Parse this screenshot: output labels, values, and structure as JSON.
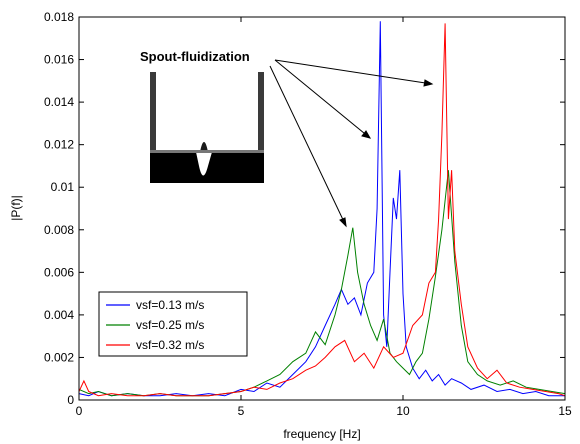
{
  "chart_data": {
    "type": "line",
    "xlabel": "frequency [Hz]",
    "ylabel": "|P(f)|",
    "xlim": [
      0,
      15
    ],
    "ylim": [
      0,
      0.018
    ],
    "xticks": [
      "0",
      "5",
      "10",
      "15"
    ],
    "yticks": [
      "0",
      "0.002",
      "0.004",
      "0.006",
      "0.008",
      "0.01",
      "0.012",
      "0.014",
      "0.016",
      "0.018"
    ],
    "legend_position": "lower-left",
    "annotation": "Spout-fluidization",
    "inset_image": "spout-fluidization bed photo (grayscale)",
    "series": [
      {
        "name": "vsf=0.13 m/s",
        "color": "#0000ff",
        "x": [
          0,
          0.3,
          0.6,
          1.0,
          1.5,
          2.0,
          2.5,
          3.0,
          3.5,
          4.0,
          4.5,
          5.0,
          5.4,
          5.8,
          6.2,
          6.6,
          7.0,
          7.3,
          7.6,
          7.9,
          8.1,
          8.3,
          8.5,
          8.7,
          8.9,
          9.1,
          9.2,
          9.3,
          9.4,
          9.5,
          9.6,
          9.7,
          9.8,
          9.9,
          10.0,
          10.1,
          10.3,
          10.5,
          10.7,
          10.9,
          11.1,
          11.3,
          11.5,
          11.8,
          12.1,
          12.5,
          12.9,
          13.3,
          13.7,
          14.1,
          14.5,
          15.0
        ],
        "y": [
          0.0003,
          0.0002,
          0.0004,
          0.0002,
          0.0003,
          0.0002,
          0.0002,
          0.0003,
          0.0002,
          0.0003,
          0.0002,
          0.0005,
          0.0004,
          0.0008,
          0.0006,
          0.0012,
          0.0018,
          0.0025,
          0.0035,
          0.0045,
          0.0052,
          0.0045,
          0.0048,
          0.004,
          0.0055,
          0.006,
          0.009,
          0.0178,
          0.004,
          0.0025,
          0.006,
          0.0095,
          0.0085,
          0.0108,
          0.005,
          0.0025,
          0.0015,
          0.001,
          0.0014,
          0.0009,
          0.0012,
          0.0007,
          0.001,
          0.0008,
          0.0005,
          0.0007,
          0.0004,
          0.0005,
          0.0003,
          0.0004,
          0.0002,
          0.0002
        ]
      },
      {
        "name": "vsf=0.25 m/s",
        "color": "#008000",
        "x": [
          0,
          0.3,
          0.6,
          1.0,
          1.5,
          2.0,
          2.5,
          3.0,
          3.5,
          4.0,
          4.5,
          5.0,
          5.4,
          5.8,
          6.2,
          6.6,
          7.0,
          7.3,
          7.6,
          7.9,
          8.1,
          8.3,
          8.45,
          8.6,
          8.8,
          9.0,
          9.2,
          9.4,
          9.6,
          9.8,
          10.0,
          10.2,
          10.4,
          10.6,
          10.8,
          11.0,
          11.2,
          11.4,
          11.6,
          11.8,
          12.0,
          12.3,
          12.6,
          13.0,
          13.4,
          13.8,
          14.2,
          14.6,
          15.0
        ],
        "y": [
          0.0005,
          0.0003,
          0.0004,
          0.0002,
          0.0003,
          0.0002,
          0.0003,
          0.0002,
          0.0002,
          0.0002,
          0.0003,
          0.0004,
          0.0006,
          0.0009,
          0.0012,
          0.0018,
          0.0022,
          0.0032,
          0.0026,
          0.004,
          0.0052,
          0.0068,
          0.0081,
          0.006,
          0.0045,
          0.0035,
          0.0028,
          0.0038,
          0.0022,
          0.0018,
          0.0015,
          0.0012,
          0.0018,
          0.0022,
          0.0038,
          0.0058,
          0.008,
          0.0108,
          0.0065,
          0.0035,
          0.0018,
          0.0012,
          0.0009,
          0.0007,
          0.0009,
          0.0006,
          0.0005,
          0.0004,
          0.0003
        ]
      },
      {
        "name": "vsf=0.32 m/s",
        "color": "#ff0000",
        "x": [
          0,
          0.15,
          0.3,
          0.6,
          1.0,
          1.5,
          2.0,
          2.5,
          3.0,
          3.5,
          4.0,
          4.5,
          5.0,
          5.4,
          5.8,
          6.2,
          6.6,
          7.0,
          7.3,
          7.6,
          7.9,
          8.2,
          8.5,
          8.8,
          9.1,
          9.4,
          9.7,
          10.0,
          10.3,
          10.6,
          10.8,
          11.0,
          11.1,
          11.2,
          11.3,
          11.4,
          11.5,
          11.6,
          11.8,
          12.0,
          12.3,
          12.6,
          12.9,
          13.2,
          13.6,
          14.0,
          14.4,
          14.8,
          15.0
        ],
        "y": [
          0.0004,
          0.0009,
          0.0004,
          0.0002,
          0.0003,
          0.0002,
          0.0002,
          0.0003,
          0.0002,
          0.0002,
          0.0002,
          0.0003,
          0.0004,
          0.0006,
          0.0005,
          0.0008,
          0.001,
          0.0014,
          0.0016,
          0.002,
          0.0025,
          0.0028,
          0.0018,
          0.0022,
          0.0015,
          0.0025,
          0.002,
          0.0022,
          0.0035,
          0.004,
          0.0055,
          0.006,
          0.0085,
          0.0125,
          0.0177,
          0.0085,
          0.0108,
          0.007,
          0.0045,
          0.0025,
          0.0015,
          0.001,
          0.0014,
          0.0008,
          0.0006,
          0.0005,
          0.0004,
          0.0003,
          0.0002
        ]
      }
    ]
  }
}
